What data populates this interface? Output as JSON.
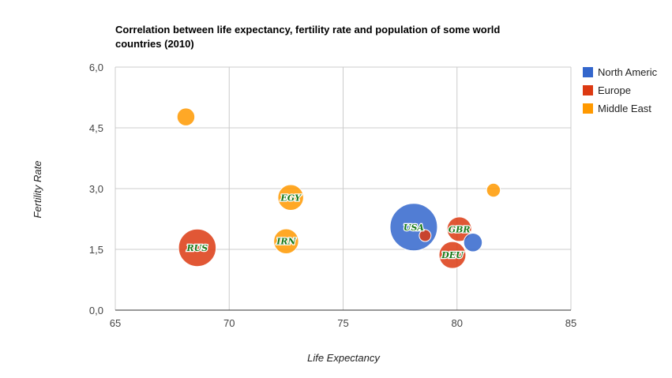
{
  "chart_data": {
    "type": "bubble",
    "title_lines": [
      "Correlation between life expectancy, fertility rate and population of some world",
      "countries (2010)"
    ],
    "xlabel": "Life Expectancy",
    "ylabel": "Fertility Rate",
    "xlim": [
      65,
      85
    ],
    "ylim": [
      0,
      6
    ],
    "x_ticks": [
      65,
      70,
      75,
      80,
      85
    ],
    "y_ticks": [
      0,
      1.5,
      3,
      4.5,
      6
    ],
    "y_tick_labels": [
      "0,0",
      "1,5",
      "3,0",
      "4,5",
      "6,0"
    ],
    "grid": true,
    "legend_position": "right",
    "series": [
      {
        "name": "North Americ",
        "color": "#3366cc"
      },
      {
        "name": "Europe",
        "color": "#dc3912"
      },
      {
        "name": "Middle East",
        "color": "#ff9900"
      }
    ],
    "points": [
      {
        "label": "",
        "series": 2,
        "x": 68.1,
        "y": 4.77,
        "size": 0.25
      },
      {
        "label": "RUS",
        "series": 1,
        "x": 68.6,
        "y": 1.54,
        "size": 0.75
      },
      {
        "label": "EGY",
        "series": 2,
        "x": 72.7,
        "y": 2.78,
        "size": 0.45
      },
      {
        "label": "IRN",
        "series": 2,
        "x": 72.5,
        "y": 1.7,
        "size": 0.43
      },
      {
        "label": "USA",
        "series": 0,
        "x": 78.1,
        "y": 2.05,
        "size": 1.0
      },
      {
        "label": "",
        "series": 1,
        "x": 78.6,
        "y": 1.84,
        "size": 0.1
      },
      {
        "label": "GBR",
        "series": 1,
        "x": 80.1,
        "y": 2.0,
        "size": 0.42
      },
      {
        "label": "DEU",
        "series": 1,
        "x": 79.8,
        "y": 1.36,
        "size": 0.48
      },
      {
        "label": "",
        "series": 0,
        "x": 80.7,
        "y": 1.67,
        "size": 0.27
      },
      {
        "label": "",
        "series": 2,
        "x": 81.6,
        "y": 2.96,
        "size": 0.15
      }
    ]
  }
}
